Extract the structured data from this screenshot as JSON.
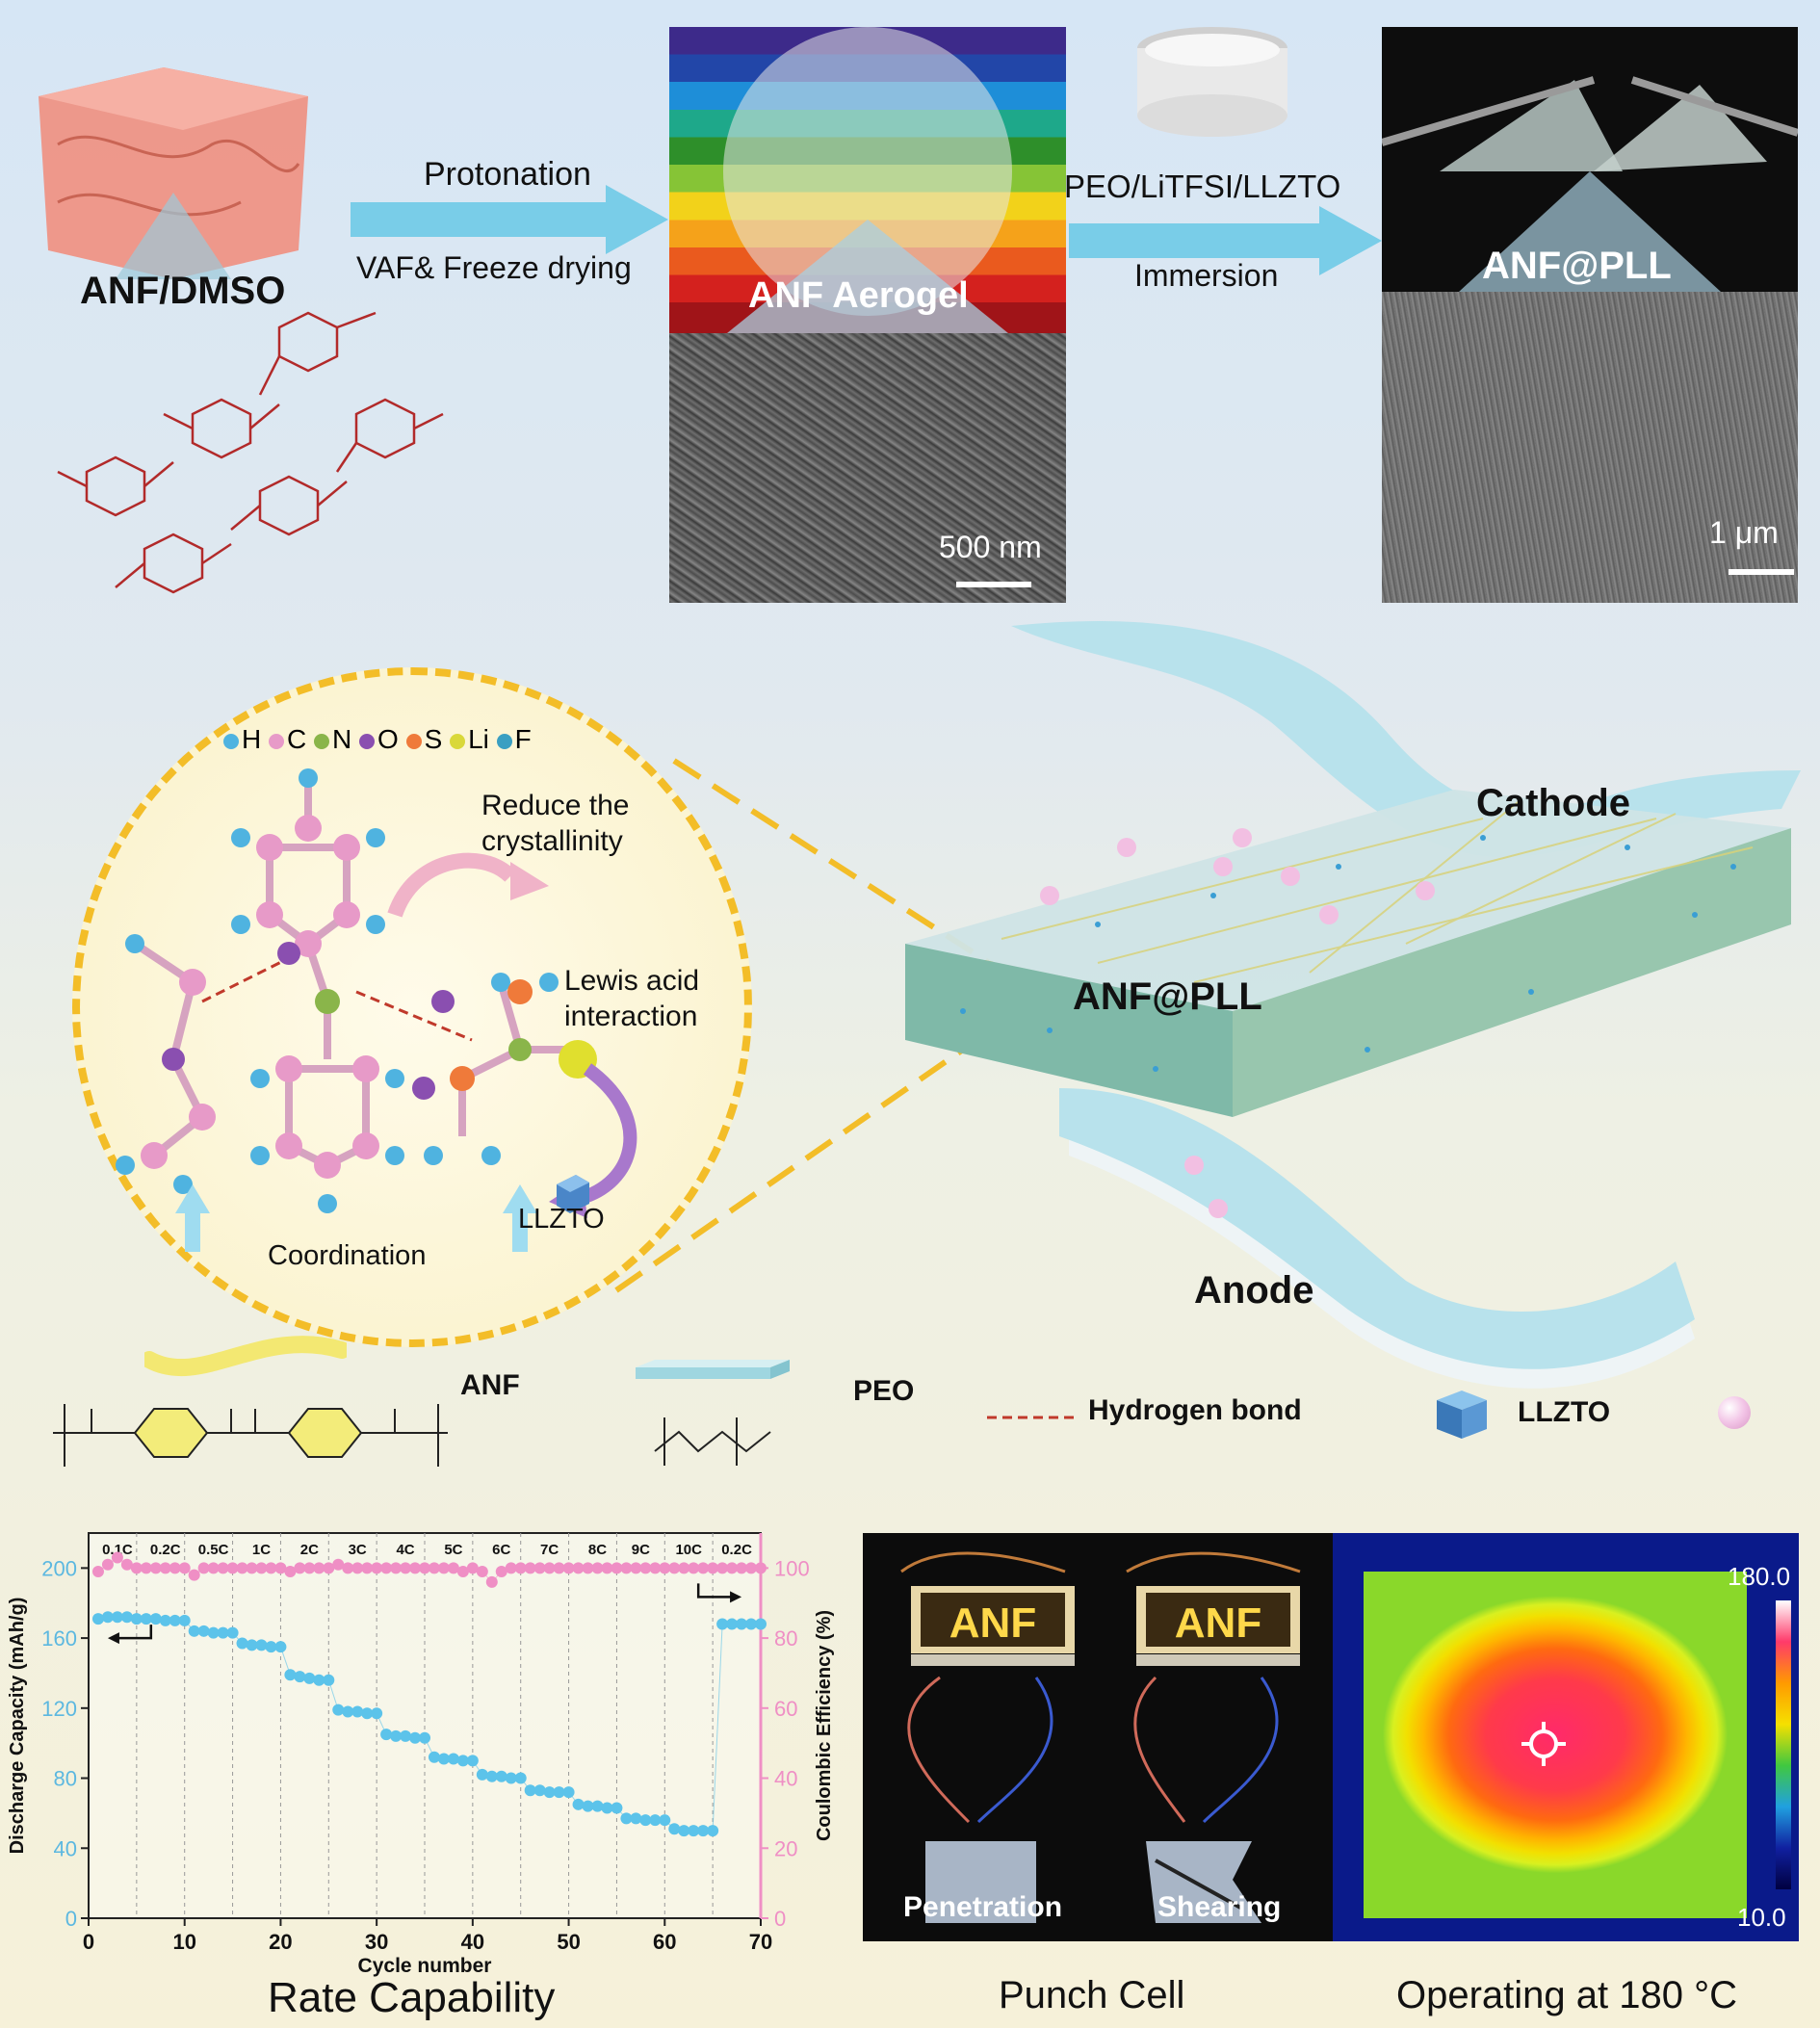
{
  "labels": {
    "anf_dmso": "ANF/DMSO",
    "protonation": "Protonation",
    "vaf_freeze": "VAF& Freeze drying",
    "anf_aerogel": "ANF Aerogel",
    "peo_litfsi": "PEO/LiTFSI/LLZTO",
    "immersion": "Immersion",
    "anf_pll_top": "ANF@PLL",
    "scale_500": "500 nm",
    "scale_1um": "1 μm",
    "reduce_cryst": "Reduce the crystallinity",
    "lewis_acid": "Lewis acid interaction",
    "coordination": "Coordination",
    "llzto_circle": "LLZTO",
    "cathode": "Cathode",
    "anode": "Anode",
    "anf_pll_mid": "ANF@PLL",
    "legend_anf": "ANF",
    "legend_peo": "PEO",
    "legend_hbond": "Hydrogen bond",
    "legend_llzto": "LLZTO",
    "penetration": "Penetration",
    "shearing": "Shearing",
    "punch_cell": "Punch Cell",
    "operating": "Operating at 180  °C",
    "rate_capability": "Rate Capability",
    "thermal_max": "180.0",
    "thermal_min": "10.0",
    "led_text": "ANF"
  },
  "atoms": [
    {
      "symbol": "H",
      "color": "#4fb3e0"
    },
    {
      "symbol": "C",
      "color": "#e79ac8"
    },
    {
      "symbol": "N",
      "color": "#8ab54a"
    },
    {
      "symbol": "O",
      "color": "#8a4fb0"
    },
    {
      "symbol": "S",
      "color": "#ef7a3a"
    },
    {
      "symbol": "Li",
      "color": "#d9d83a"
    },
    {
      "symbol": "F",
      "color": "#3a9fc2"
    }
  ],
  "chart_data": {
    "type": "scatter",
    "title": "Rate Capability",
    "xlabel": "Cycle number",
    "ylabel": "Discharge Capacity (mAh/g)",
    "ylabel_right": "Coulombic Efficiency (%)",
    "xlim": [
      0,
      70
    ],
    "ylim": [
      0,
      220
    ],
    "ylim_right": [
      0,
      110
    ],
    "x_ticks": [
      0,
      10,
      20,
      30,
      40,
      50,
      60,
      70
    ],
    "y_ticks": [
      0,
      40,
      80,
      120,
      160,
      200
    ],
    "y_ticks_right": [
      0,
      20,
      40,
      60,
      80,
      100
    ],
    "rates": [
      {
        "label": "0.1C",
        "x": 3
      },
      {
        "label": "0.2C",
        "x": 8
      },
      {
        "label": "0.5C",
        "x": 13
      },
      {
        "label": "1C",
        "x": 18
      },
      {
        "label": "2C",
        "x": 23
      },
      {
        "label": "3C",
        "x": 28
      },
      {
        "label": "4C",
        "x": 33
      },
      {
        "label": "5C",
        "x": 38
      },
      {
        "label": "6C",
        "x": 43
      },
      {
        "label": "7C",
        "x": 48
      },
      {
        "label": "8C",
        "x": 53
      },
      {
        "label": "9C",
        "x": 57.5
      },
      {
        "label": "10C",
        "x": 62.5
      },
      {
        "label": "0.2C",
        "x": 67.5
      }
    ],
    "rate_dividers": [
      5,
      10,
      15,
      20,
      25,
      30,
      35,
      40,
      45,
      50,
      55,
      60,
      65
    ],
    "series": [
      {
        "axis": "left",
        "color": "#5cc3ea",
        "x": [
          1,
          2,
          3,
          4,
          5,
          6,
          7,
          8,
          9,
          10,
          11,
          12,
          13,
          14,
          15,
          16,
          17,
          18,
          19,
          20,
          21,
          22,
          23,
          24,
          25,
          26,
          27,
          28,
          29,
          30,
          31,
          32,
          33,
          34,
          35,
          36,
          37,
          38,
          39,
          40,
          41,
          42,
          43,
          44,
          45,
          46,
          47,
          48,
          49,
          50,
          51,
          52,
          53,
          54,
          55,
          56,
          57,
          58,
          59,
          60,
          61,
          62,
          63,
          64,
          65,
          66,
          67,
          68,
          69,
          70
        ],
        "y": [
          171,
          172,
          172,
          172,
          171,
          171,
          171,
          170,
          170,
          170,
          164,
          164,
          163,
          163,
          163,
          157,
          156,
          156,
          155,
          155,
          139,
          138,
          137,
          136,
          136,
          119,
          118,
          118,
          117,
          117,
          105,
          104,
          104,
          103,
          103,
          92,
          91,
          91,
          90,
          90,
          82,
          81,
          81,
          80,
          80,
          73,
          73,
          72,
          72,
          72,
          65,
          64,
          64,
          63,
          63,
          57,
          57,
          56,
          56,
          56,
          51,
          50,
          50,
          50,
          50,
          168,
          168,
          168,
          168,
          168
        ]
      },
      {
        "axis": "right",
        "color": "#ef8fc5",
        "x": [
          1,
          2,
          3,
          4,
          5,
          6,
          7,
          8,
          9,
          10,
          11,
          12,
          13,
          14,
          15,
          16,
          17,
          18,
          19,
          20,
          21,
          22,
          23,
          24,
          25,
          26,
          27,
          28,
          29,
          30,
          31,
          32,
          33,
          34,
          35,
          36,
          37,
          38,
          39,
          40,
          41,
          42,
          43,
          44,
          45,
          46,
          47,
          48,
          49,
          50,
          51,
          52,
          53,
          54,
          55,
          56,
          57,
          58,
          59,
          60,
          61,
          62,
          63,
          64,
          65,
          66,
          67,
          68,
          69,
          70
        ],
        "y": [
          99,
          101,
          103,
          101,
          100,
          100,
          100,
          100,
          100,
          100,
          98,
          100,
          100,
          100,
          100,
          100,
          100,
          100,
          100,
          100,
          99,
          100,
          100,
          100,
          100,
          101,
          100,
          100,
          100,
          100,
          100,
          100,
          100,
          100,
          100,
          100,
          100,
          100,
          99,
          100,
          99,
          96,
          99,
          100,
          100,
          100,
          100,
          100,
          100,
          100,
          100,
          100,
          100,
          100,
          100,
          100,
          100,
          100,
          100,
          100,
          100,
          100,
          100,
          100,
          100,
          100,
          100,
          100,
          100,
          100
        ]
      }
    ]
  }
}
